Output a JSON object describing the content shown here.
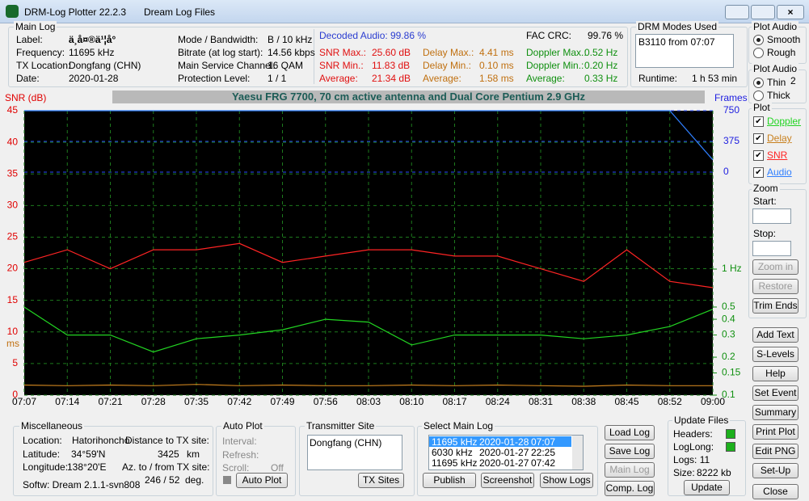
{
  "window": {
    "app": "DRM-Log Plotter 22.2.3",
    "file": "Dream Log Files"
  },
  "main_log": {
    "title": "Main Log",
    "left": [
      [
        "Label:",
        "ä¸­å¤®ä¹¦å°"
      ],
      [
        "Frequency:",
        "11695   kHz"
      ],
      [
        "TX Location:",
        "Dongfang (CHN)"
      ],
      [
        "Date:",
        "2020-01-28"
      ]
    ],
    "mid": [
      [
        "Mode / Bandwidth:",
        "B / 10 kHz"
      ],
      [
        "Bitrate (at log start):",
        "14.56 kbps"
      ],
      [
        "Main Service Channel:",
        "16  QAM"
      ],
      [
        "Protection Level:",
        "1 / 1"
      ]
    ],
    "decoded_audio": [
      "Decoded Audio:",
      "99.86 %"
    ],
    "fac_crc": [
      "FAC  CRC:",
      "99.76 %"
    ],
    "snr": [
      [
        "SNR Max.:",
        "25.60  dB"
      ],
      [
        "SNR Min.:",
        "11.83  dB"
      ],
      [
        "Average:",
        "21.34  dB"
      ]
    ],
    "delay": [
      [
        "Delay Max.:",
        "4.41   ms"
      ],
      [
        "Delay Min.:",
        "0.10   ms"
      ],
      [
        "Average:",
        "1.58   ms"
      ]
    ],
    "doppler": [
      [
        "Doppler Max.:",
        "0.52 Hz"
      ],
      [
        "Doppler Min.:",
        "0.20 Hz"
      ],
      [
        "Average:",
        "0.33 Hz"
      ]
    ]
  },
  "modes": {
    "title": "DRM Modes Used",
    "items": [
      "B3110 from 07:07"
    ],
    "runtime": [
      "Runtime:",
      "1 h 53 min"
    ]
  },
  "plot_audio": {
    "title": "Plot Audio",
    "options": [
      "Smooth",
      "Rough"
    ]
  },
  "plot_audio2": {
    "title": "Plot Audio",
    "options": [
      "Thin",
      "Thick"
    ],
    "value": "2"
  },
  "plot_box": {
    "title": "Plot"
  },
  "zoom": {
    "title": "Zoom",
    "start": "Start:",
    "stop": "Stop:",
    "buttons": [
      "Zoom in",
      "Restore",
      "Trim Ends"
    ]
  },
  "side_buttons": [
    "Add Text",
    "S-Levels",
    "Help",
    "Set Event",
    "Summary",
    "Print Plot",
    "Edit PNG",
    "Set-Up"
  ],
  "close": "Close",
  "plot": {
    "type": "line",
    "title": "Yaesu FRG 7700, 70 cm active antenna and Dual Core Pentium 2.9 GHz",
    "ylabel": "SNR (dB)",
    "y2label": "ms",
    "y3label": "Frames",
    "x": [
      "07:07",
      "07:14",
      "07:21",
      "07:28",
      "07:35",
      "07:42",
      "07:49",
      "07:56",
      "08:03",
      "08:10",
      "08:17",
      "08:24",
      "08:31",
      "08:38",
      "08:45",
      "08:52",
      "09:00"
    ],
    "ylim": [
      0,
      45
    ],
    "yticks": [
      0,
      5,
      10,
      15,
      20,
      25,
      30,
      35,
      40,
      45
    ],
    "dopplerlim": [
      0.1,
      1
    ],
    "dopplerticks": [
      {
        "value": 1,
        "label": "1 Hz"
      },
      0.5,
      0.4,
      0.3,
      0.2,
      0.15,
      0.1
    ],
    "doppler_log": true,
    "frameslim": [
      0,
      750
    ],
    "framesticks": [
      0,
      375,
      750
    ],
    "grid": true,
    "series": [
      {
        "name": "Doppler",
        "color": "#22d422",
        "axis": "doppler",
        "values": [
          0.5,
          0.3,
          0.3,
          0.22,
          0.28,
          0.3,
          0.33,
          0.4,
          0.38,
          0.25,
          0.3,
          0.3,
          0.3,
          0.28,
          0.3,
          0.35,
          0.48
        ]
      },
      {
        "name": "Delay",
        "color": "#c8801e",
        "axis": "y",
        "values": [
          1.6,
          1.5,
          1.6,
          1.5,
          1.7,
          1.5,
          1.6,
          1.5,
          1.5,
          1.6,
          1.5,
          1.6,
          1.5,
          1.4,
          1.6,
          1.5,
          1.5
        ]
      },
      {
        "name": "SNR",
        "color": "#ff2424",
        "axis": "y",
        "values": [
          21,
          23,
          20,
          23,
          23,
          24,
          21,
          22,
          23,
          23,
          22,
          22,
          20,
          18,
          23,
          18,
          17
        ]
      },
      {
        "name": "Audio",
        "color": "#2f7fff",
        "axis": "frames",
        "values": [
          750,
          750,
          750,
          750,
          750,
          750,
          750,
          750,
          750,
          750,
          750,
          750,
          750,
          750,
          750,
          750,
          150
        ]
      }
    ]
  },
  "misc": {
    "title": "Miscellaneous",
    "location": [
      "Location:",
      "Hatorihoncho"
    ],
    "distance": [
      "Distance to TX site:",
      "3425",
      "km"
    ],
    "latitude": [
      "Latitude:",
      "34°59'N"
    ],
    "longitude": [
      "Longitude:",
      "138°20'E"
    ],
    "azimuth": [
      "Az. to / from TX site:",
      "246 / 52",
      "deg."
    ],
    "software": "Softw: Dream 2.1.1-svn808"
  },
  "auto_plot": {
    "title": "Auto Plot",
    "interval": "Interval:",
    "refresh": "Refresh:",
    "scroll": [
      "Scroll:",
      "Off"
    ],
    "button": "Auto Plot"
  },
  "tx_site": {
    "title": "Transmitter Site",
    "items": [
      "Dongfang (CHN)"
    ],
    "button": "TX Sites"
  },
  "select_log": {
    "title": "Select Main Log",
    "rows": [
      [
        "11695 kHz",
        "2020-01-28",
        "07:07"
      ],
      [
        "6030 kHz",
        "2020-01-27",
        "22:25"
      ],
      [
        "11695 kHz",
        "2020-01-27",
        "07:42"
      ]
    ],
    "buttons": [
      "Publish",
      "Screenshot",
      "Show Logs"
    ]
  },
  "log_buttons": [
    "Load Log",
    "Save Log",
    "Main Log",
    "Comp. Log"
  ],
  "update": {
    "title": "Update Files",
    "headers": "Headers:",
    "loglong": "LogLong:",
    "logs": "Logs: 11",
    "size": [
      "Size:",
      "8222 kb"
    ],
    "button": "Update"
  }
}
